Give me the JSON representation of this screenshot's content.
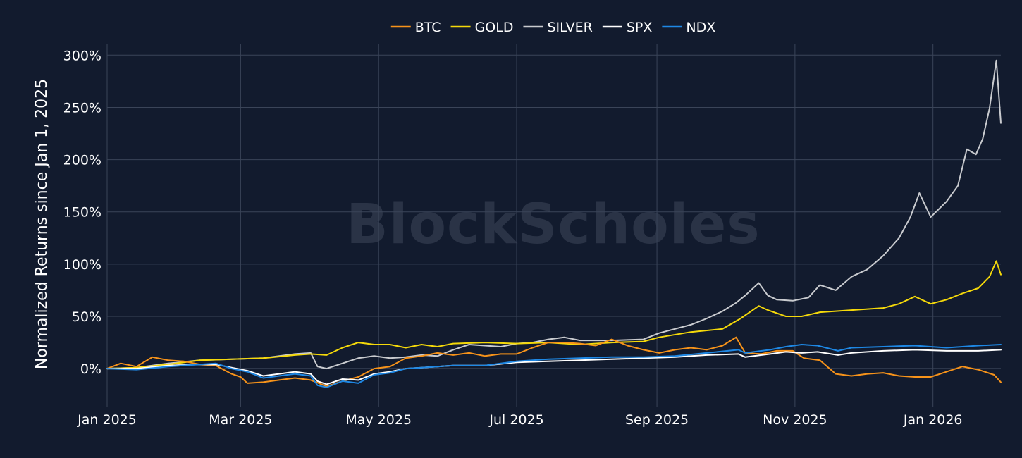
{
  "watermark": "BlockScholes",
  "chart_data": {
    "type": "line",
    "title": "",
    "xlabel": "",
    "ylabel": "Normalized Returns since Jan 1, 2025",
    "x_ticks": [
      "2025-01-01",
      "2025-03-01",
      "2025-05-01",
      "2025-07-01",
      "2025-09-01",
      "2025-11-01",
      "2026-01-01"
    ],
    "x_tick_labels": [
      "Jan 2025",
      "Mar 2025",
      "May 2025",
      "Jul 2025",
      "Sep 2025",
      "Nov 2025",
      "Jan 2026"
    ],
    "xlim": [
      "2025-01-01",
      "2026-01-31"
    ],
    "y_ticks": [
      0,
      50,
      100,
      150,
      200,
      250,
      300
    ],
    "y_tick_labels": [
      "0%",
      "50%",
      "100%",
      "150%",
      "200%",
      "250%",
      "300%"
    ],
    "ylim": [
      -37,
      311
    ],
    "grid": true,
    "legend_position": "top-center",
    "series": [
      {
        "name": "BTC",
        "color": "#f7931a",
        "points": [
          [
            "2025-01-01",
            0
          ],
          [
            "2025-01-07",
            5
          ],
          [
            "2025-01-14",
            2
          ],
          [
            "2025-01-21",
            11
          ],
          [
            "2025-01-28",
            8
          ],
          [
            "2025-02-04",
            7
          ],
          [
            "2025-02-11",
            4
          ],
          [
            "2025-02-18",
            3
          ],
          [
            "2025-02-25",
            -5
          ],
          [
            "2025-03-01",
            -8
          ],
          [
            "2025-03-04",
            -14
          ],
          [
            "2025-03-11",
            -13
          ],
          [
            "2025-03-18",
            -11
          ],
          [
            "2025-03-25",
            -9
          ],
          [
            "2025-04-01",
            -11
          ],
          [
            "2025-04-08",
            -17
          ],
          [
            "2025-04-15",
            -12
          ],
          [
            "2025-04-22",
            -8
          ],
          [
            "2025-04-29",
            0
          ],
          [
            "2025-05-06",
            2
          ],
          [
            "2025-05-13",
            10
          ],
          [
            "2025-05-20",
            12
          ],
          [
            "2025-05-27",
            15
          ],
          [
            "2025-06-03",
            13
          ],
          [
            "2025-06-10",
            15
          ],
          [
            "2025-06-17",
            12
          ],
          [
            "2025-06-24",
            14
          ],
          [
            "2025-07-01",
            14
          ],
          [
            "2025-07-08",
            20
          ],
          [
            "2025-07-15",
            25
          ],
          [
            "2025-07-22",
            25
          ],
          [
            "2025-07-29",
            24
          ],
          [
            "2025-08-05",
            22
          ],
          [
            "2025-08-12",
            28
          ],
          [
            "2025-08-19",
            22
          ],
          [
            "2025-08-26",
            18
          ],
          [
            "2025-09-02",
            15
          ],
          [
            "2025-09-09",
            18
          ],
          [
            "2025-09-16",
            20
          ],
          [
            "2025-09-23",
            18
          ],
          [
            "2025-09-30",
            22
          ],
          [
            "2025-10-06",
            30
          ],
          [
            "2025-10-10",
            15
          ],
          [
            "2025-10-17",
            14
          ],
          [
            "2025-10-24",
            17
          ],
          [
            "2025-10-31",
            17
          ],
          [
            "2025-11-05",
            10
          ],
          [
            "2025-11-12",
            8
          ],
          [
            "2025-11-19",
            -5
          ],
          [
            "2025-11-26",
            -7
          ],
          [
            "2025-12-03",
            -5
          ],
          [
            "2025-12-10",
            -4
          ],
          [
            "2025-12-17",
            -7
          ],
          [
            "2025-12-24",
            -8
          ],
          [
            "2025-12-31",
            -8
          ],
          [
            "2026-01-07",
            -3
          ],
          [
            "2026-01-14",
            2
          ],
          [
            "2026-01-21",
            -1
          ],
          [
            "2026-01-28",
            -6
          ],
          [
            "2026-01-31",
            -13
          ]
        ]
      },
      {
        "name": "GOLD",
        "color": "#f5d90a",
        "points": [
          [
            "2025-01-01",
            0
          ],
          [
            "2025-01-14",
            1
          ],
          [
            "2025-01-28",
            4
          ],
          [
            "2025-02-11",
            8
          ],
          [
            "2025-02-25",
            9
          ],
          [
            "2025-03-11",
            10
          ],
          [
            "2025-03-25",
            13
          ],
          [
            "2025-04-01",
            14
          ],
          [
            "2025-04-08",
            13
          ],
          [
            "2025-04-15",
            20
          ],
          [
            "2025-04-22",
            25
          ],
          [
            "2025-04-29",
            23
          ],
          [
            "2025-05-06",
            23
          ],
          [
            "2025-05-13",
            20
          ],
          [
            "2025-05-20",
            23
          ],
          [
            "2025-05-27",
            21
          ],
          [
            "2025-06-03",
            24
          ],
          [
            "2025-06-17",
            25
          ],
          [
            "2025-07-01",
            24
          ],
          [
            "2025-07-15",
            25
          ],
          [
            "2025-07-29",
            23
          ],
          [
            "2025-08-12",
            25
          ],
          [
            "2025-08-26",
            26
          ],
          [
            "2025-09-02",
            30
          ],
          [
            "2025-09-16",
            35
          ],
          [
            "2025-09-30",
            38
          ],
          [
            "2025-10-08",
            48
          ],
          [
            "2025-10-16",
            60
          ],
          [
            "2025-10-20",
            56
          ],
          [
            "2025-10-28",
            50
          ],
          [
            "2025-11-04",
            50
          ],
          [
            "2025-11-12",
            54
          ],
          [
            "2025-11-19",
            55
          ],
          [
            "2025-11-26",
            56
          ],
          [
            "2025-12-03",
            57
          ],
          [
            "2025-12-10",
            58
          ],
          [
            "2025-12-17",
            62
          ],
          [
            "2025-12-24",
            69
          ],
          [
            "2025-12-31",
            62
          ],
          [
            "2026-01-07",
            66
          ],
          [
            "2026-01-14",
            72
          ],
          [
            "2026-01-21",
            77
          ],
          [
            "2026-01-26",
            88
          ],
          [
            "2026-01-29",
            103
          ],
          [
            "2026-01-31",
            90
          ]
        ]
      },
      {
        "name": "SILVER",
        "color": "#c9cbcf",
        "points": [
          [
            "2025-01-01",
            0
          ],
          [
            "2025-01-14",
            1
          ],
          [
            "2025-01-28",
            5
          ],
          [
            "2025-02-11",
            8
          ],
          [
            "2025-02-25",
            9
          ],
          [
            "2025-03-11",
            10
          ],
          [
            "2025-03-25",
            14
          ],
          [
            "2025-04-01",
            15
          ],
          [
            "2025-04-04",
            2
          ],
          [
            "2025-04-08",
            0
          ],
          [
            "2025-04-15",
            5
          ],
          [
            "2025-04-22",
            10
          ],
          [
            "2025-04-29",
            12
          ],
          [
            "2025-05-06",
            10
          ],
          [
            "2025-05-13",
            11
          ],
          [
            "2025-05-20",
            13
          ],
          [
            "2025-05-27",
            12
          ],
          [
            "2025-06-03",
            18
          ],
          [
            "2025-06-10",
            23
          ],
          [
            "2025-06-17",
            22
          ],
          [
            "2025-06-24",
            21
          ],
          [
            "2025-07-01",
            24
          ],
          [
            "2025-07-08",
            25
          ],
          [
            "2025-07-15",
            28
          ],
          [
            "2025-07-22",
            30
          ],
          [
            "2025-07-29",
            27
          ],
          [
            "2025-08-12",
            27
          ],
          [
            "2025-08-26",
            28
          ],
          [
            "2025-09-02",
            34
          ],
          [
            "2025-09-09",
            38
          ],
          [
            "2025-09-16",
            42
          ],
          [
            "2025-09-23",
            48
          ],
          [
            "2025-09-30",
            55
          ],
          [
            "2025-10-06",
            63
          ],
          [
            "2025-10-10",
            70
          ],
          [
            "2025-10-16",
            82
          ],
          [
            "2025-10-20",
            70
          ],
          [
            "2025-10-24",
            66
          ],
          [
            "2025-10-31",
            65
          ],
          [
            "2025-11-07",
            68
          ],
          [
            "2025-11-12",
            80
          ],
          [
            "2025-11-19",
            75
          ],
          [
            "2025-11-26",
            88
          ],
          [
            "2025-12-03",
            95
          ],
          [
            "2025-12-10",
            108
          ],
          [
            "2025-12-17",
            125
          ],
          [
            "2025-12-22",
            145
          ],
          [
            "2025-12-26",
            168
          ],
          [
            "2025-12-31",
            145
          ],
          [
            "2026-01-07",
            160
          ],
          [
            "2026-01-12",
            175
          ],
          [
            "2026-01-16",
            210
          ],
          [
            "2026-01-20",
            205
          ],
          [
            "2026-01-23",
            220
          ],
          [
            "2026-01-26",
            249
          ],
          [
            "2026-01-29",
            295
          ],
          [
            "2026-01-31",
            235
          ]
        ]
      },
      {
        "name": "SPX",
        "color": "#ffffff",
        "points": [
          [
            "2025-01-01",
            0
          ],
          [
            "2025-01-14",
            0
          ],
          [
            "2025-01-28",
            3
          ],
          [
            "2025-02-11",
            4
          ],
          [
            "2025-02-18",
            4
          ],
          [
            "2025-02-25",
            1
          ],
          [
            "2025-03-04",
            -2
          ],
          [
            "2025-03-11",
            -7
          ],
          [
            "2025-03-18",
            -5
          ],
          [
            "2025-03-25",
            -3
          ],
          [
            "2025-04-01",
            -5
          ],
          [
            "2025-04-04",
            -12
          ],
          [
            "2025-04-08",
            -15
          ],
          [
            "2025-04-15",
            -10
          ],
          [
            "2025-04-22",
            -11
          ],
          [
            "2025-04-29",
            -5
          ],
          [
            "2025-05-06",
            -3
          ],
          [
            "2025-05-13",
            0
          ],
          [
            "2025-05-20",
            1
          ],
          [
            "2025-05-27",
            2
          ],
          [
            "2025-06-03",
            3
          ],
          [
            "2025-06-17",
            3
          ],
          [
            "2025-07-01",
            6
          ],
          [
            "2025-07-15",
            7
          ],
          [
            "2025-07-29",
            8
          ],
          [
            "2025-08-12",
            9
          ],
          [
            "2025-08-26",
            10
          ],
          [
            "2025-09-09",
            11
          ],
          [
            "2025-09-23",
            13
          ],
          [
            "2025-10-07",
            14
          ],
          [
            "2025-10-10",
            11
          ],
          [
            "2025-10-21",
            14
          ],
          [
            "2025-10-28",
            16
          ],
          [
            "2025-11-04",
            15
          ],
          [
            "2025-11-11",
            16
          ],
          [
            "2025-11-20",
            13
          ],
          [
            "2025-11-26",
            15
          ],
          [
            "2025-12-10",
            17
          ],
          [
            "2025-12-24",
            18
          ],
          [
            "2026-01-07",
            17
          ],
          [
            "2026-01-21",
            17
          ],
          [
            "2026-01-31",
            18
          ]
        ]
      },
      {
        "name": "NDX",
        "color": "#1e88e5",
        "points": [
          [
            "2025-01-01",
            0
          ],
          [
            "2025-01-14",
            -1
          ],
          [
            "2025-01-28",
            2
          ],
          [
            "2025-02-11",
            4
          ],
          [
            "2025-02-18",
            5
          ],
          [
            "2025-02-25",
            0
          ],
          [
            "2025-03-04",
            -3
          ],
          [
            "2025-03-11",
            -9
          ],
          [
            "2025-03-18",
            -7
          ],
          [
            "2025-03-25",
            -5
          ],
          [
            "2025-04-01",
            -7
          ],
          [
            "2025-04-04",
            -16
          ],
          [
            "2025-04-08",
            -18
          ],
          [
            "2025-04-15",
            -12
          ],
          [
            "2025-04-22",
            -14
          ],
          [
            "2025-04-29",
            -6
          ],
          [
            "2025-05-06",
            -4
          ],
          [
            "2025-05-13",
            0
          ],
          [
            "2025-05-20",
            1
          ],
          [
            "2025-05-27",
            2
          ],
          [
            "2025-06-03",
            3
          ],
          [
            "2025-06-17",
            3
          ],
          [
            "2025-07-01",
            7
          ],
          [
            "2025-07-15",
            9
          ],
          [
            "2025-07-29",
            10
          ],
          [
            "2025-08-12",
            11
          ],
          [
            "2025-08-26",
            11
          ],
          [
            "2025-09-09",
            12
          ],
          [
            "2025-09-23",
            15
          ],
          [
            "2025-10-07",
            18
          ],
          [
            "2025-10-10",
            15
          ],
          [
            "2025-10-21",
            18
          ],
          [
            "2025-10-28",
            21
          ],
          [
            "2025-11-04",
            23
          ],
          [
            "2025-11-11",
            22
          ],
          [
            "2025-11-20",
            17
          ],
          [
            "2025-11-26",
            20
          ],
          [
            "2025-12-10",
            21
          ],
          [
            "2025-12-24",
            22
          ],
          [
            "2026-01-07",
            20
          ],
          [
            "2026-01-21",
            22
          ],
          [
            "2026-01-31",
            23
          ]
        ]
      }
    ]
  }
}
